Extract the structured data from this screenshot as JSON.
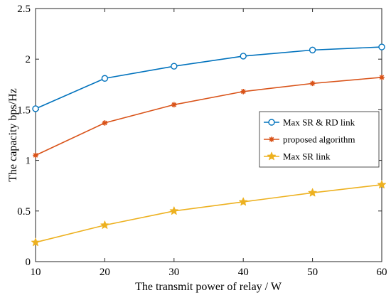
{
  "chart_data": {
    "type": "line",
    "title": "",
    "xlabel": "The transmit power of relay / W",
    "ylabel": "The capacity bps/Hz",
    "x": [
      10,
      20,
      30,
      40,
      50,
      60
    ],
    "xlim": [
      10,
      60
    ],
    "ylim": [
      0,
      2.5
    ],
    "xticks": [
      10,
      20,
      30,
      40,
      50,
      60
    ],
    "yticks": [
      0,
      0.5,
      1,
      1.5,
      2,
      2.5
    ],
    "ytick_labels": [
      "0",
      "0.5",
      "1",
      "1.5",
      "2",
      "2.5"
    ],
    "grid": false,
    "legend_position": "right",
    "series": [
      {
        "name": "Max SR & RD link",
        "values": [
          1.51,
          1.81,
          1.93,
          2.03,
          2.09,
          2.12
        ],
        "color": "#0072BD",
        "marker": "circle"
      },
      {
        "name": "proposed algorithm",
        "values": [
          1.05,
          1.37,
          1.55,
          1.68,
          1.76,
          1.82
        ],
        "color": "#D95319",
        "marker": "asterisk"
      },
      {
        "name": "Max SR link",
        "values": [
          0.19,
          0.36,
          0.5,
          0.59,
          0.68,
          0.76
        ],
        "color": "#EDB120",
        "marker": "star"
      }
    ]
  }
}
